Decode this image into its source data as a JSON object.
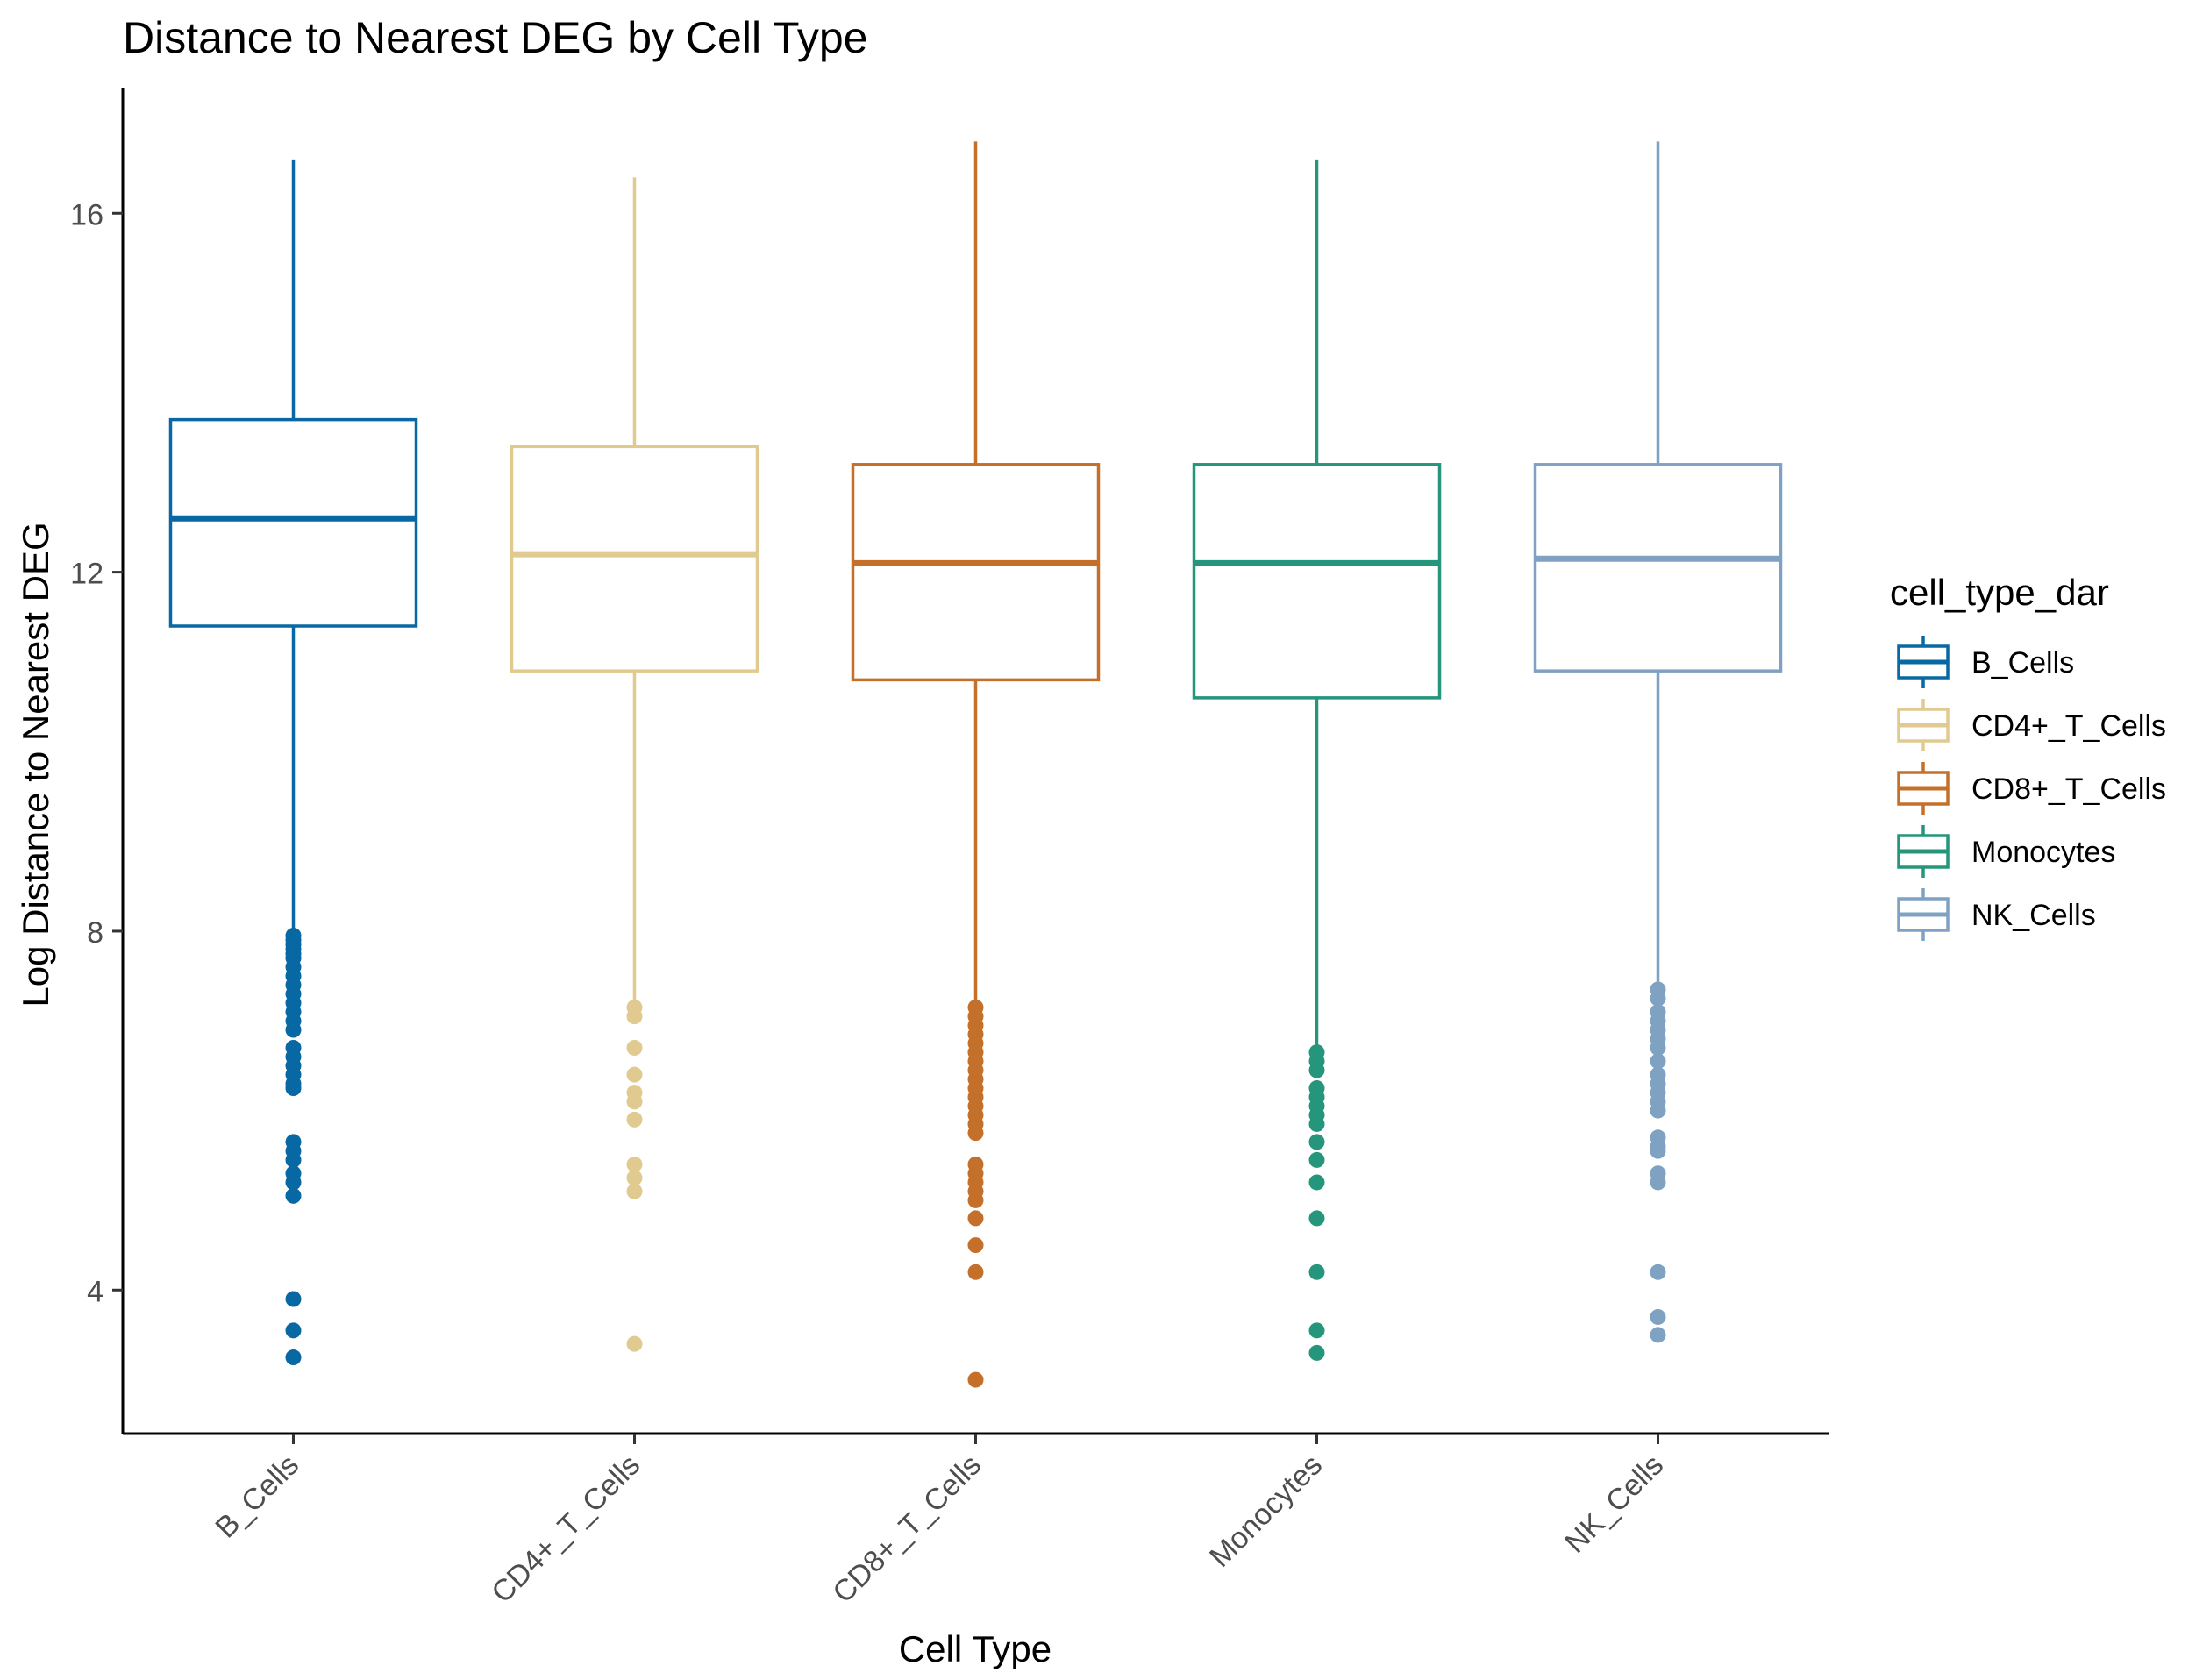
{
  "chart_data": {
    "type": "boxplot",
    "title": "Distance to Nearest DEG by Cell Type",
    "xlabel": "Cell Type",
    "ylabel": "Log Distance to Nearest DEG",
    "ylim": [
      2.4,
      17.4
    ],
    "yticks": [
      4,
      8,
      12,
      16
    ],
    "grid": false,
    "legend_title": "cell_type_dar",
    "legend_position": "right",
    "categories": [
      "B_Cells",
      "CD4+_T_Cells",
      "CD8+_T_Cells",
      "Monocytes",
      "NK_Cells"
    ],
    "series": [
      {
        "name": "B_Cells",
        "color": "#0868A3",
        "whisker_low": 7.9,
        "q1": 11.4,
        "median": 12.6,
        "q3": 13.7,
        "whisker_high": 16.6,
        "outliers": [
          7.95,
          7.9,
          7.85,
          7.8,
          7.75,
          7.7,
          7.6,
          7.5,
          7.4,
          7.3,
          7.2,
          7.1,
          7.0,
          6.9,
          6.7,
          6.6,
          6.5,
          6.4,
          6.3,
          6.25,
          5.65,
          5.55,
          5.45,
          5.3,
          5.2,
          5.05,
          3.9,
          3.55,
          3.25
        ]
      },
      {
        "name": "CD4+_T_Cells",
        "color": "#E0CA8F",
        "whisker_low": 7.1,
        "q1": 10.9,
        "median": 12.2,
        "q3": 13.4,
        "whisker_high": 16.4,
        "outliers": [
          7.15,
          7.05,
          6.7,
          6.4,
          6.2,
          6.1,
          5.9,
          5.4,
          5.25,
          5.1,
          3.4
        ]
      },
      {
        "name": "CD8+_T_Cells",
        "color": "#C5702A",
        "whisker_low": 7.1,
        "q1": 10.8,
        "median": 12.1,
        "q3": 13.2,
        "whisker_high": 16.8,
        "outliers": [
          7.15,
          7.05,
          6.95,
          6.85,
          6.75,
          6.65,
          6.55,
          6.45,
          6.35,
          6.25,
          6.15,
          6.05,
          5.95,
          5.85,
          5.75,
          5.4,
          5.3,
          5.2,
          5.1,
          5.0,
          4.8,
          4.5,
          4.2,
          3.0
        ]
      },
      {
        "name": "Monocytes",
        "color": "#25967C",
        "whisker_low": 6.6,
        "q1": 10.6,
        "median": 12.1,
        "q3": 13.2,
        "whisker_high": 16.6,
        "outliers": [
          6.65,
          6.55,
          6.45,
          6.25,
          6.15,
          6.05,
          5.95,
          5.85,
          5.65,
          5.45,
          5.2,
          4.8,
          4.2,
          3.55,
          3.3
        ]
      },
      {
        "name": "NK_Cells",
        "color": "#7FA2C2",
        "whisker_low": 7.3,
        "q1": 10.9,
        "median": 12.15,
        "q3": 13.2,
        "whisker_high": 16.8,
        "outliers": [
          7.35,
          7.25,
          7.1,
          7.0,
          6.9,
          6.8,
          6.7,
          6.55,
          6.4,
          6.3,
          6.2,
          6.1,
          6.0,
          5.7,
          5.6,
          5.55,
          5.3,
          5.2,
          4.2,
          3.7,
          3.5
        ]
      }
    ]
  }
}
